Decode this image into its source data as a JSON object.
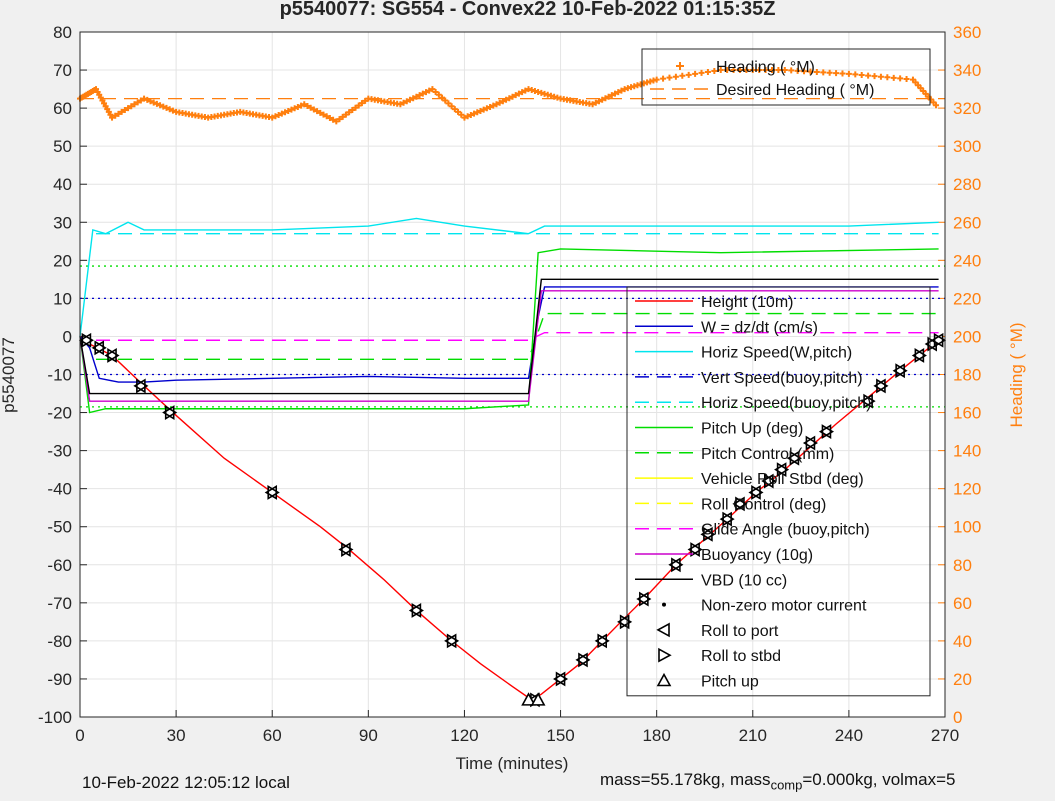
{
  "figure": {
    "title": "p5540077: SG554 - Convex22 10-Feb-2022 01:15:35Z",
    "footer_left": "10-Feb-2022 12:05:12 local",
    "footer_right_a": "mass=55.178kg, mass",
    "footer_right_sub": "comp",
    "footer_right_b": "=0.000kg, volmax=5"
  },
  "chart_data": {
    "type": "line",
    "xlabel": "Time (minutes)",
    "ylabel_left": "p5540077",
    "ylabel_right": "Heading ( °M)",
    "xlim": [
      0,
      270
    ],
    "ylim_left": [
      -100,
      80
    ],
    "ylim_right": [
      0,
      360
    ],
    "xticks": [
      0,
      30,
      60,
      90,
      120,
      150,
      180,
      210,
      240,
      270
    ],
    "yticks_left": [
      -100,
      -90,
      -80,
      -70,
      -60,
      -50,
      -40,
      -30,
      -20,
      -10,
      0,
      10,
      20,
      30,
      40,
      50,
      60,
      70,
      80
    ],
    "yticks_right": [
      0,
      20,
      40,
      60,
      80,
      100,
      120,
      140,
      160,
      180,
      200,
      220,
      240,
      260,
      280,
      300,
      320,
      340,
      360
    ],
    "grid": true,
    "colors": {
      "height": "#ff0000",
      "w": "#0000cd",
      "horiz": "#00e5ee",
      "pitch": "#00dd00",
      "roll": "#ffff00",
      "glide": "#ff00ff",
      "buoy": "#cc00cc",
      "vbd": "#000000",
      "heading": "#ff7f0e"
    },
    "legend_main": [
      {
        "label": "Height (10m)",
        "color": "#ff0000",
        "style": "solid"
      },
      {
        "label": "W = dz/dt (cm/s)",
        "color": "#0000cd",
        "style": "solid"
      },
      {
        "label": "Horiz Speed(W,pitch)",
        "color": "#00e5ee",
        "style": "solid"
      },
      {
        "label": "Vert Speed(buoy,pitch)",
        "color": "#0000cd",
        "style": "dashed"
      },
      {
        "label": "Horiz Speed(buoy,pitch)",
        "color": "#00e5ee",
        "style": "dashed"
      },
      {
        "label": "Pitch Up (deg)",
        "color": "#00dd00",
        "style": "solid"
      },
      {
        "label": "Pitch Control (mm)",
        "color": "#00dd00",
        "style": "dashed"
      },
      {
        "label": "Vehicle Roll Stbd (deg)",
        "color": "#ffff00",
        "style": "solid"
      },
      {
        "label": "Roll Control (deg)",
        "color": "#ffff00",
        "style": "dashed"
      },
      {
        "label": "Glide Angle (buoy,pitch)",
        "color": "#ff00ff",
        "style": "dashed"
      },
      {
        "label": "Buoyancy (10g)",
        "color": "#cc00cc",
        "style": "solid"
      },
      {
        "label": "VBD (10 cc)",
        "color": "#000000",
        "style": "solid"
      },
      {
        "label": "Non-zero motor current",
        "color": "#000000",
        "style": "dot"
      },
      {
        "label": "Roll to port",
        "color": "#000000",
        "style": "tri-left"
      },
      {
        "label": "Roll to stbd",
        "color": "#000000",
        "style": "tri-right"
      },
      {
        "label": "Pitch up",
        "color": "#000000",
        "style": "tri-up"
      }
    ],
    "legend_heading": [
      {
        "label": "Heading ( °M)",
        "color": "#ff7f0e",
        "style": "marker"
      },
      {
        "label": "Desired Heading ( °M)",
        "color": "#ff7f0e",
        "style": "dashed"
      }
    ],
    "series": [
      {
        "key": "height",
        "x": [
          0,
          3,
          10,
          20,
          29,
          45,
          60,
          75,
          84,
          95,
          105,
          116,
          125,
          135,
          141,
          144,
          150,
          156,
          163,
          170,
          176,
          186,
          194,
          202,
          211,
          220,
          228,
          236,
          246,
          256,
          262,
          268
        ],
        "y": [
          0,
          -2,
          -5,
          -13,
          -20,
          -32,
          -41,
          -50,
          -56,
          -64,
          -72,
          -80,
          -86,
          -92,
          -95.5,
          -94,
          -90,
          -86,
          -80,
          -74,
          -69,
          -60,
          -54,
          -48,
          -41,
          -35,
          -29,
          -23,
          -16,
          -9,
          -5,
          -1
        ]
      },
      {
        "key": "w",
        "x": [
          0,
          3,
          6,
          12,
          20,
          30,
          60,
          90,
          120,
          140,
          143,
          145,
          160,
          200,
          240,
          268
        ],
        "y": [
          0,
          -3,
          -11,
          -12,
          -12,
          -11.5,
          -11,
          -10.5,
          -11,
          -11,
          5,
          13,
          13,
          13,
          13,
          13
        ]
      },
      {
        "key": "horiz",
        "x": [
          0,
          4,
          8,
          15,
          20,
          30,
          60,
          90,
          105,
          120,
          140,
          145,
          160,
          200,
          240,
          268
        ],
        "y": [
          0,
          28,
          27,
          30,
          28,
          28,
          28,
          29,
          31,
          29,
          27,
          29,
          29,
          29,
          29,
          30
        ]
      },
      {
        "key": "horiz_model",
        "x": [
          5,
          140,
          145,
          268
        ],
        "y": [
          27,
          27,
          27,
          27
        ]
      },
      {
        "key": "pitch",
        "x": [
          0,
          3,
          8,
          20,
          60,
          120,
          140,
          143,
          150,
          200,
          268
        ],
        "y": [
          0,
          -20,
          -19,
          -19,
          -19,
          -19,
          -18,
          22,
          23,
          22,
          23
        ]
      },
      {
        "key": "pitch_ctrl",
        "x": [
          5,
          140,
          145,
          268
        ],
        "y": [
          -6,
          -6,
          6,
          6
        ]
      },
      {
        "key": "glide",
        "x": [
          5,
          140,
          145,
          268
        ],
        "y": [
          -1,
          -1,
          1,
          1
        ]
      },
      {
        "key": "buoy",
        "x": [
          0,
          3,
          140,
          144,
          268
        ],
        "y": [
          0,
          -17,
          -17,
          12,
          12
        ]
      },
      {
        "key": "vbd",
        "x": [
          0,
          3,
          140,
          144,
          268
        ],
        "y": [
          0,
          -15,
          -15,
          15,
          15
        ]
      },
      {
        "key": "heading",
        "x": [
          0,
          5,
          10,
          20,
          30,
          40,
          50,
          60,
          70,
          80,
          90,
          100,
          110,
          120,
          130,
          140,
          150,
          160,
          170,
          180,
          200,
          220,
          240,
          260,
          268
        ],
        "y": [
          325,
          330,
          315,
          325,
          318,
          315,
          318,
          315,
          322,
          313,
          325,
          322,
          330,
          315,
          322,
          330,
          325,
          322,
          330,
          335,
          340,
          340,
          338,
          335,
          320
        ]
      }
    ],
    "reference_lines": [
      {
        "key": "w_ref_pos",
        "y": 10,
        "color": "#0000cd",
        "style": "dotted"
      },
      {
        "key": "w_ref_neg",
        "y": -10,
        "color": "#0000cd",
        "style": "dotted"
      },
      {
        "key": "pitch_ref_pos",
        "y": 18.5,
        "color": "#00dd00",
        "style": "dotted"
      },
      {
        "key": "pitch_ref_neg",
        "y": -18.5,
        "color": "#00dd00",
        "style": "dotted"
      },
      {
        "key": "heading_desired",
        "y_right": 325,
        "color": "#ff7f0e",
        "style": "dashed"
      }
    ],
    "events": {
      "roll_marks": [
        {
          "x": 2,
          "y": -1
        },
        {
          "x": 6,
          "y": -3
        },
        {
          "x": 10,
          "y": -5
        },
        {
          "x": 19,
          "y": -13
        },
        {
          "x": 28,
          "y": -20
        },
        {
          "x": 60,
          "y": -41
        },
        {
          "x": 83,
          "y": -56
        },
        {
          "x": 105,
          "y": -72
        },
        {
          "x": 116,
          "y": -80
        },
        {
          "x": 142,
          "y": -95.5
        },
        {
          "x": 150,
          "y": -90
        },
        {
          "x": 157,
          "y": -85
        },
        {
          "x": 163,
          "y": -80
        },
        {
          "x": 170,
          "y": -75
        },
        {
          "x": 176,
          "y": -69
        },
        {
          "x": 186,
          "y": -60
        },
        {
          "x": 192,
          "y": -56
        },
        {
          "x": 196,
          "y": -52
        },
        {
          "x": 202,
          "y": -48
        },
        {
          "x": 206,
          "y": -44
        },
        {
          "x": 211,
          "y": -41
        },
        {
          "x": 215,
          "y": -38
        },
        {
          "x": 219,
          "y": -35
        },
        {
          "x": 223,
          "y": -32
        },
        {
          "x": 228,
          "y": -28
        },
        {
          "x": 233,
          "y": -25
        },
        {
          "x": 246,
          "y": -17
        },
        {
          "x": 250,
          "y": -13
        },
        {
          "x": 256,
          "y": -9
        },
        {
          "x": 262,
          "y": -5
        },
        {
          "x": 266,
          "y": -2
        },
        {
          "x": 268,
          "y": -1
        }
      ],
      "pitch_up": [
        {
          "x": 140,
          "y": -95.5
        },
        {
          "x": 143,
          "y": -95.5
        }
      ]
    }
  }
}
